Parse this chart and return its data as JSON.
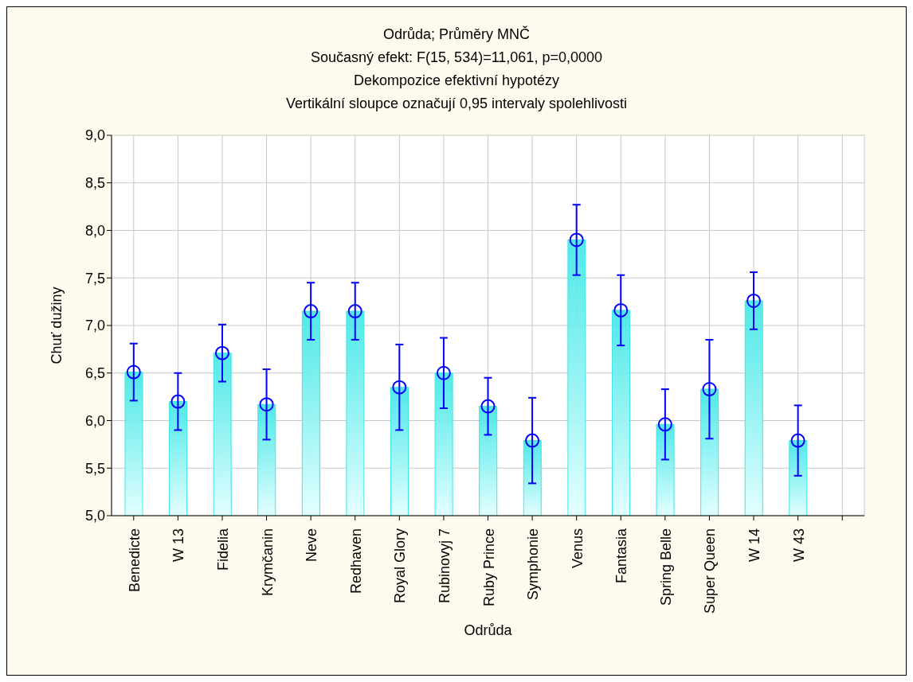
{
  "chart_data": {
    "type": "bar",
    "title": "Odrůda; Průměry MNČ",
    "subtitle": "Současný efekt: F(15, 534)=11,061, p=0,0000\nDekompozice efektivní hypotézy\nVertikální sloupce označují 0,95 intervaly spolehlivosti",
    "xlabel": "Odrůda",
    "ylabel": "Chuť dužiny",
    "categories": [
      "Benedicte",
      "W 13",
      "Fidelia",
      "Krymčanin",
      "Neve",
      "Redhaven",
      "Royal Glory",
      "Rubinovyj 7",
      "Ruby Prince",
      "Symphonie",
      "Venus",
      "Fantasia",
      "Spring Belle",
      "Super Queen",
      "W 14",
      "W 43",
      null
    ],
    "series": [
      {
        "color": "#3ee6e6",
        "values": [
          6.51,
          6.2,
          6.71,
          6.17,
          7.15,
          7.15,
          6.35,
          6.5,
          6.15,
          5.79,
          7.9,
          7.16,
          5.96,
          6.33,
          7.26,
          5.79,
          null
        ]
      },
      {
        "type": "scatter",
        "color": "#0000ff",
        "marker": "circle",
        "x": [
          "Benedicte",
          "W 13",
          "Fidelia",
          "Krymčanin",
          "Neve",
          "Redhaven",
          "Royal Glory",
          "Rubinovyj 7",
          "Ruby Prince",
          "Symphonie",
          "Venus",
          "Fantasia",
          "Spring Belle",
          "Super Queen",
          "W 14",
          "W 43"
        ],
        "values": [
          6.51,
          6.2,
          6.71,
          6.17,
          7.15,
          7.15,
          6.35,
          6.5,
          6.15,
          5.79,
          7.9,
          7.16,
          5.96,
          6.33,
          7.26,
          5.79
        ],
        "errors": [
          0.3,
          0.3,
          0.3,
          0.37,
          0.3,
          0.3,
          0.45,
          0.37,
          0.3,
          0.45,
          0.37,
          0.37,
          0.37,
          0.52,
          0.3,
          0.37
        ]
      }
    ],
    "ylim": [
      5,
      9
    ],
    "yticks": [
      {
        "value": 5,
        "label": "5,0"
      },
      {
        "value": 5.5,
        "label": "5,5"
      },
      {
        "value": 6,
        "label": "6,0"
      },
      {
        "value": 6.5,
        "label": "6,5"
      },
      {
        "value": 7,
        "label": "7,0"
      },
      {
        "value": 7.5,
        "label": "7,5"
      },
      {
        "value": 8,
        "label": "8,0"
      },
      {
        "value": 8.5,
        "label": "8,5"
      },
      {
        "value": 9,
        "label": "9,0"
      }
    ],
    "grid": true,
    "legend": false
  }
}
